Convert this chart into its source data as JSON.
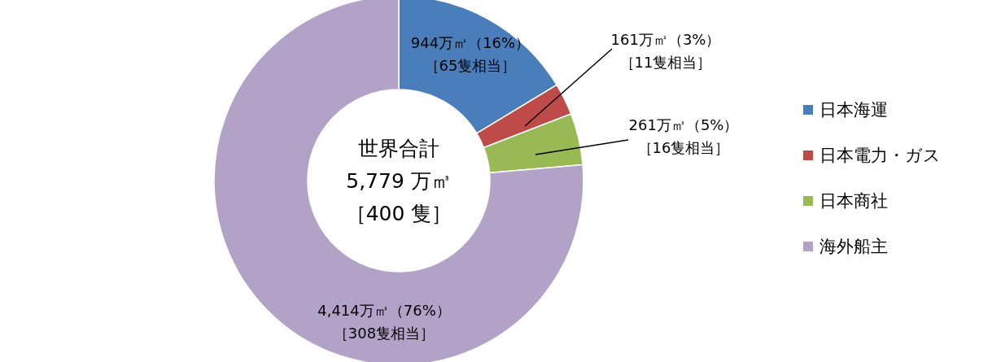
{
  "chart_data": {
    "type": "donut",
    "categories": [
      "日本海運",
      "日本電力・ガス",
      "日本商社",
      "海外船主"
    ],
    "values": [
      944,
      161,
      261,
      4414
    ],
    "colors": [
      "#4a7ebb",
      "#be4b48",
      "#98b954",
      "#b2a2c7"
    ],
    "value_labels": [
      "944万㎥（16%）［65隻相当］",
      "161万㎥（3%）［11隻相当］",
      "261万㎥（5%）［16隻相当］",
      "4,414万㎥（76%）［308隻相当］"
    ],
    "annotations": [
      "世界合計",
      "5,779 万㎥",
      "［400 隻］"
    ],
    "legend": "right"
  }
}
